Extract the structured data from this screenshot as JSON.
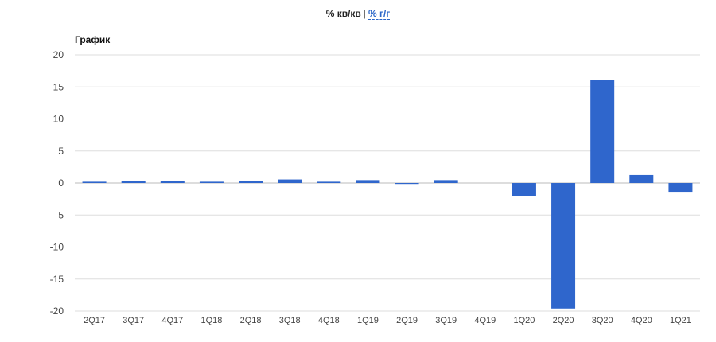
{
  "toggle": {
    "active_label": "% кв/кв",
    "separator": "|",
    "alt_label": "% г/г"
  },
  "chart_title": "График",
  "colors": {
    "bar": "#2f66cc",
    "grid": "#dddddd",
    "baseline": "#bbbbbb"
  },
  "chart_data": {
    "type": "bar",
    "title": "График",
    "xlabel": "",
    "ylabel": "",
    "ylim": [
      -20,
      20
    ],
    "yticks": [
      20,
      15,
      10,
      5,
      0,
      -5,
      -10,
      -15,
      -20
    ],
    "grid": true,
    "categories": [
      "2Q17",
      "3Q17",
      "4Q17",
      "1Q18",
      "2Q18",
      "3Q18",
      "4Q18",
      "1Q19",
      "2Q19",
      "3Q19",
      "4Q19",
      "1Q20",
      "2Q20",
      "3Q20",
      "4Q20",
      "1Q21"
    ],
    "values": [
      0.2,
      0.35,
      0.35,
      0.2,
      0.35,
      0.55,
      0.2,
      0.45,
      -0.15,
      0.45,
      0.0,
      -2.1,
      -19.6,
      16.1,
      1.25,
      -1.5
    ]
  }
}
